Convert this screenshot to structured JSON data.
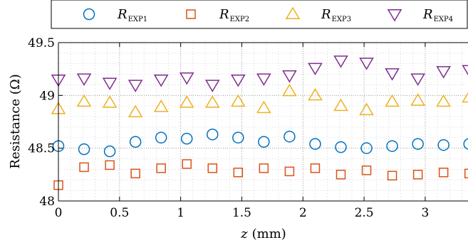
{
  "chart_data": {
    "type": "scatter",
    "title": "",
    "xlabel": "z (mm)",
    "xlabel_var": "z",
    "xlabel_unit": "(mm)",
    "ylabel": "Resistance (Ω)",
    "xlim": [
      0,
      3.35
    ],
    "ylim": [
      48,
      49.5
    ],
    "x_ticks": [
      0,
      0.5,
      1,
      1.5,
      2,
      2.5,
      3
    ],
    "x_tick_labels": [
      "0",
      "0.5",
      "1",
      "1.5",
      "2",
      "2.5",
      "3"
    ],
    "y_ticks": [
      48,
      48.5,
      49,
      49.5
    ],
    "y_tick_labels": [
      "48",
      "48.5",
      "49",
      "49.5"
    ],
    "grid": "dotted major and minor",
    "legend_position": "top, horizontal, above plot",
    "x": [
      0,
      0.21,
      0.42,
      0.63,
      0.84,
      1.05,
      1.26,
      1.47,
      1.68,
      1.89,
      2.1,
      2.31,
      2.52,
      2.73,
      2.94,
      3.15,
      3.36
    ],
    "series": [
      {
        "name": "R_EXP1",
        "label_main": "R",
        "label_sub": "EXP1",
        "marker": "circle",
        "color": "#0072BD",
        "values": [
          48.52,
          48.49,
          48.47,
          48.56,
          48.6,
          48.59,
          48.63,
          48.6,
          48.56,
          48.61,
          48.54,
          48.51,
          48.5,
          48.52,
          48.54,
          48.53,
          48.54
        ]
      },
      {
        "name": "R_EXP2",
        "label_main": "R",
        "label_sub": "EXP2",
        "marker": "square",
        "color": "#D95319",
        "values": [
          48.15,
          48.32,
          48.34,
          48.26,
          48.31,
          48.35,
          48.31,
          48.27,
          48.31,
          48.28,
          48.31,
          48.25,
          48.29,
          48.24,
          48.25,
          48.27,
          48.26
        ]
      },
      {
        "name": "R_EXP3",
        "label_main": "R",
        "label_sub": "EXP3",
        "marker": "triangle-up",
        "color": "#EDB120",
        "values": [
          48.87,
          48.94,
          48.93,
          48.84,
          48.89,
          48.93,
          48.93,
          48.94,
          48.88,
          49.04,
          49.0,
          48.9,
          48.86,
          48.94,
          48.95,
          48.94,
          48.98
        ]
      },
      {
        "name": "R_EXP4",
        "label_main": "R",
        "label_sub": "EXP4",
        "marker": "triangle-down",
        "color": "#7E2F8E",
        "values": [
          49.15,
          49.16,
          49.12,
          49.1,
          49.15,
          49.17,
          49.1,
          49.15,
          49.16,
          49.19,
          49.26,
          49.33,
          49.31,
          49.21,
          49.16,
          49.23,
          49.24
        ]
      }
    ]
  }
}
